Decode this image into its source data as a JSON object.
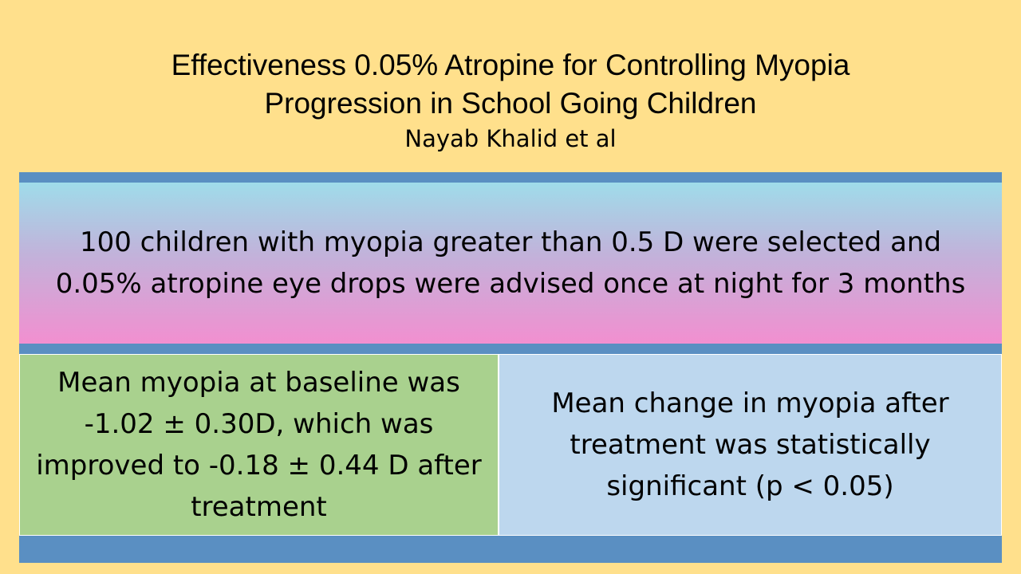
{
  "slide": {
    "title_line1": "Effectiveness 0.05% Atropine for Controlling Myopia",
    "title_line2": "Progression in School Going Children",
    "authors": "Nayab Khalid et al"
  },
  "summary": {
    "text": "100 children with myopia greater than 0.5 D were selected and 0.05% atropine eye drops were advised once at night for 3 months"
  },
  "results": {
    "baseline_text": "Mean myopia at baseline was -1.02 ± 0.30D, which was improved to -0.18 ± 0.44 D after treatment",
    "significance_text": "Mean change in myopia after treatment was statistically significant (p < 0.05)"
  },
  "colors": {
    "background": "#FFE08C",
    "frame": "#5A8FC2",
    "gradient_top": "#9FDCEA",
    "gradient_bottom": "#F28FD0",
    "left_box": "#A9D18E",
    "right_box": "#BDD7EE"
  }
}
